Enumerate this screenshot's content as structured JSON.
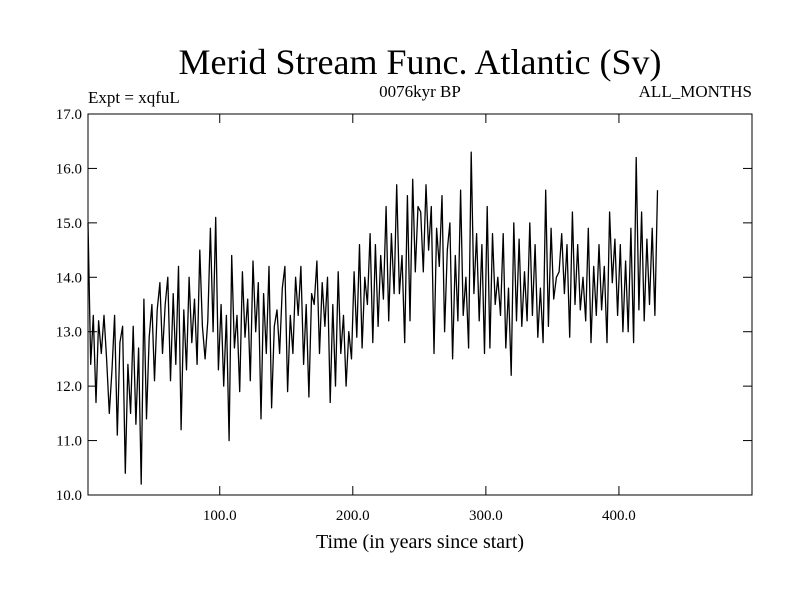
{
  "chart_data": {
    "type": "line",
    "title": "Merid Stream Func. Atlantic (Sv)",
    "experiment_label": "Expt = xqfuL",
    "period_label": "0076kyr BP",
    "months_label": "ALL_MONTHS",
    "xlabel": "Time (in years since start)",
    "ylabel": "",
    "xlim": [
      1,
      500
    ],
    "ylim": [
      10.0,
      17.0
    ],
    "xticks": [
      100,
      200,
      300,
      400
    ],
    "xtick_labels": [
      "100.0",
      "200.0",
      "300.0",
      "400.0"
    ],
    "yticks": [
      10,
      11,
      12,
      13,
      14,
      15,
      16,
      17
    ],
    "ytick_labels": [
      "10.0",
      "11.0",
      "12.0",
      "13.0",
      "14.0",
      "15.0",
      "16.0",
      "17.0"
    ],
    "series": [
      {
        "name": "Merid Stream Func. Atlantic",
        "color": "#000000",
        "x_start": 1,
        "x_step": 2,
        "values": [
          15.0,
          12.4,
          13.3,
          11.7,
          13.2,
          12.6,
          13.3,
          12.5,
          11.5,
          12.3,
          13.3,
          11.1,
          12.8,
          13.1,
          10.4,
          12.4,
          11.5,
          13.1,
          11.3,
          12.7,
          10.2,
          13.6,
          11.4,
          12.9,
          13.5,
          12.1,
          13.4,
          13.9,
          12.6,
          13.5,
          14.0,
          12.1,
          13.7,
          12.4,
          14.2,
          11.2,
          13.4,
          12.3,
          14.0,
          12.8,
          13.6,
          12.4,
          14.5,
          13.1,
          12.5,
          13.2,
          14.9,
          13.0,
          15.1,
          12.3,
          13.5,
          12.0,
          13.3,
          11.0,
          14.4,
          12.7,
          13.3,
          11.9,
          14.1,
          12.9,
          13.6,
          12.1,
          14.3,
          13.0,
          13.9,
          11.4,
          13.7,
          12.6,
          14.2,
          11.6,
          13.1,
          13.4,
          12.6,
          13.8,
          14.2,
          11.9,
          13.3,
          12.6,
          14.0,
          13.3,
          14.2,
          12.4,
          13.5,
          11.8,
          13.7,
          13.5,
          14.3,
          12.6,
          13.9,
          13.1,
          14.0,
          11.7,
          13.5,
          12.0,
          14.1,
          12.6,
          13.3,
          12.0,
          13.0,
          12.5,
          14.1,
          12.9,
          14.6,
          12.7,
          14.0,
          13.5,
          14.8,
          12.8,
          14.6,
          13.1,
          14.4,
          13.6,
          15.3,
          13.2,
          14.8,
          13.7,
          15.7,
          13.7,
          14.4,
          12.8,
          15.5,
          13.2,
          15.8,
          14.1,
          15.3,
          15.2,
          14.1,
          15.7,
          14.5,
          15.3,
          12.6,
          14.9,
          14.2,
          15.5,
          13.0,
          14.5,
          15.0,
          12.5,
          14.4,
          13.2,
          15.6,
          13.3,
          14.0,
          12.7,
          16.3,
          13.7,
          14.8,
          13.2,
          14.6,
          12.6,
          15.3,
          12.7,
          14.8,
          13.5,
          14.0,
          13.3,
          14.8,
          12.7,
          13.8,
          12.2,
          15.0,
          13.2,
          14.7,
          13.1,
          14.1,
          13.2,
          15.0,
          13.3,
          14.6,
          12.9,
          13.8,
          12.8,
          15.6,
          13.1,
          14.9,
          13.6,
          14.0,
          14.1,
          14.8,
          13.7,
          14.6,
          12.9,
          15.2,
          13.5,
          14.6,
          13.4,
          14.0,
          13.2,
          14.9,
          12.8,
          14.2,
          13.3,
          14.6,
          13.4,
          14.2,
          12.8,
          15.2,
          13.9,
          14.7,
          13.3,
          14.6,
          13.0,
          14.3,
          13.0,
          14.9,
          12.8,
          16.2,
          13.4,
          15.2,
          13.2,
          14.7,
          13.5,
          14.9,
          13.3,
          15.6
        ]
      }
    ]
  }
}
